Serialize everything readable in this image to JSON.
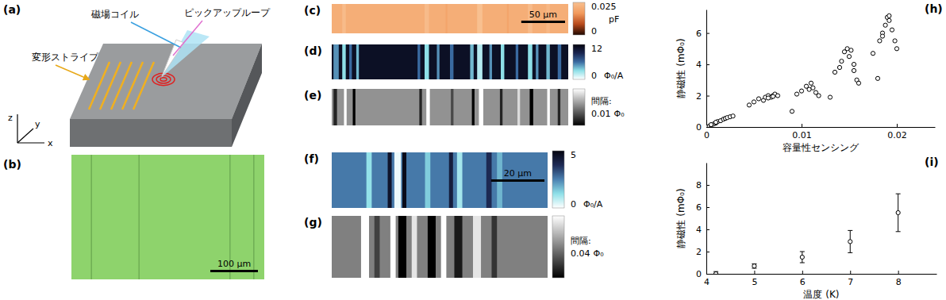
{
  "panels": {
    "a": {
      "label": "(a)",
      "coil": "磁場コイル",
      "loop": "ピックアップループ",
      "stripes": "変形ストライプ",
      "axes": [
        "x",
        "y",
        "z"
      ]
    },
    "b": {
      "label": "(b)",
      "color": "#8ed36c",
      "extent_um": 405,
      "lines_um": [
        42,
        142,
        333,
        383
      ],
      "scale_bar": {
        "length": 100,
        "label": "100 μm"
      }
    },
    "c": {
      "label": "(c)",
      "extent_um": 270,
      "background": 0.021,
      "stripes": [
        {
          "x": 12,
          "w": 4,
          "value": 0.024
        },
        {
          "x": 106,
          "w": 5,
          "value": 0.024
        },
        {
          "x": 130,
          "w": 2,
          "value": 0.019
        },
        {
          "x": 166,
          "w": 6,
          "value": 0.025
        },
        {
          "x": 200,
          "w": 2,
          "value": 0.019
        },
        {
          "x": 224,
          "w": 5,
          "value": 0.024
        },
        {
          "x": 245,
          "w": 4,
          "value": 0.023
        }
      ],
      "colorbar": {
        "range": [
          0,
          0.025
        ],
        "ticks": [
          0,
          0.025
        ],
        "unit": "pF",
        "colors": [
          "#200800",
          "#b84a1c",
          "#f29a5c",
          "#f8c090"
        ]
      },
      "scale_bar": {
        "length": 50,
        "label": "50 μm"
      }
    },
    "d": {
      "label": "(d)",
      "extent_um": 270,
      "background": 11,
      "stripes": [
        {
          "x": 2,
          "w": 6,
          "value": 5
        },
        {
          "x": 12,
          "w": 4,
          "value": 3
        },
        {
          "x": 20,
          "w": 3,
          "value": 6
        },
        {
          "x": 28,
          "w": 3,
          "value": 4
        },
        {
          "x": 98,
          "w": 3,
          "value": 6
        },
        {
          "x": 106,
          "w": 5,
          "value": 3
        },
        {
          "x": 120,
          "w": 3,
          "value": 5
        },
        {
          "x": 135,
          "w": 4,
          "value": 6
        },
        {
          "x": 158,
          "w": 4,
          "value": 4
        },
        {
          "x": 166,
          "w": 6,
          "value": 2
        },
        {
          "x": 180,
          "w": 3,
          "value": 5
        },
        {
          "x": 193,
          "w": 4,
          "value": 3
        },
        {
          "x": 210,
          "w": 3,
          "value": 6
        },
        {
          "x": 224,
          "w": 5,
          "value": 3
        },
        {
          "x": 233,
          "w": 3,
          "value": 5
        },
        {
          "x": 245,
          "w": 4,
          "value": 4
        },
        {
          "x": 258,
          "w": 4,
          "value": 6
        }
      ],
      "colorbar": {
        "range": [
          0,
          12
        ],
        "ticks": [
          0,
          12
        ],
        "unit": "Φ₀/A",
        "colors": [
          "#ffffff",
          "#8ee0e8",
          "#3a6aa0",
          "#1a2550",
          "#05050f"
        ]
      }
    },
    "e": {
      "label": "(e)",
      "extent_um": 270,
      "background": 0.02,
      "stripes": [
        {
          "x": 2,
          "w": 4,
          "value": 0.005
        },
        {
          "x": 14,
          "w": 3,
          "value": 0.035
        },
        {
          "x": 24,
          "w": 3,
          "value": 0
        },
        {
          "x": 100,
          "w": 3,
          "value": 0.005
        },
        {
          "x": 108,
          "w": 4,
          "value": 0.035
        },
        {
          "x": 136,
          "w": 3,
          "value": 0.01
        },
        {
          "x": 160,
          "w": 3,
          "value": 0
        },
        {
          "x": 168,
          "w": 5,
          "value": 0.035
        },
        {
          "x": 192,
          "w": 3,
          "value": 0.005
        },
        {
          "x": 212,
          "w": 3,
          "value": 0.03
        },
        {
          "x": 226,
          "w": 4,
          "value": 0
        },
        {
          "x": 246,
          "w": 3,
          "value": 0.035
        },
        {
          "x": 258,
          "w": 3,
          "value": 0.005
        }
      ],
      "colors": [
        "#000000",
        "#ffffff"
      ],
      "contour": {
        "title": "間隔:",
        "interval": 0.01,
        "unit": "Φ₀"
      }
    },
    "f": {
      "label": "(f)",
      "extent_um": 81,
      "background": 2.6,
      "stripes": [
        {
          "x": 13,
          "w": 2,
          "value": 1.2
        },
        {
          "x": 21,
          "w": 1.5,
          "value": 4.5
        },
        {
          "x": 23.5,
          "w": 2.5,
          "value": 0.2
        },
        {
          "x": 26.5,
          "w": 1.5,
          "value": 4.8
        },
        {
          "x": 35,
          "w": 2,
          "value": 1.5
        },
        {
          "x": 44,
          "w": 1.5,
          "value": 4.2
        },
        {
          "x": 47,
          "w": 2,
          "value": 1.0
        },
        {
          "x": 58,
          "w": 2,
          "value": 3.8
        },
        {
          "x": 62,
          "w": 2,
          "value": 1.8
        }
      ],
      "colorbar": {
        "range": [
          0,
          5
        ],
        "ticks": [
          0,
          5
        ],
        "unit": "Φ₀/A",
        "colors": [
          "#ffffff",
          "#8ee0e8",
          "#4a80b0",
          "#1e2a55",
          "#05050f"
        ]
      },
      "scale_bar": {
        "length": 20,
        "label": "20 μm"
      }
    },
    "g": {
      "label": "(g)",
      "extent_um": 81,
      "background": 0.1,
      "stripes": [
        {
          "x": 11,
          "w": 3,
          "value": 0.2
        },
        {
          "x": 16,
          "w": 2,
          "value": 0.05
        },
        {
          "x": 22,
          "w": 2,
          "value": 0.2
        },
        {
          "x": 25,
          "w": 3,
          "value": 0
        },
        {
          "x": 30,
          "w": 2,
          "value": 0.18
        },
        {
          "x": 36,
          "w": 3,
          "value": 0
        },
        {
          "x": 41,
          "w": 2,
          "value": 0.2
        },
        {
          "x": 46,
          "w": 3,
          "value": 0.02
        },
        {
          "x": 53,
          "w": 3,
          "value": 0.18
        },
        {
          "x": 60,
          "w": 2,
          "value": 0.04
        }
      ],
      "colors": [
        "#000000",
        "#ffffff"
      ],
      "contour": {
        "title": "間隔:",
        "interval": 0.04,
        "unit": "Φ₀"
      }
    }
  },
  "chart_data": [
    {
      "type": "scatter",
      "title": "(h)",
      "xlabel": "容量性センシング",
      "ylabel": "静磁性 (mΦ₀)",
      "marker": "circle",
      "x": [
        0,
        0.0003,
        0.0005,
        0.0008,
        0.001,
        0.0012,
        0.0015,
        0.0018,
        0.002,
        0.0022,
        0.0025,
        0.0028,
        0.0005,
        0.001,
        0.0045,
        0.005,
        0.0055,
        0.006,
        0.0062,
        0.0065,
        0.0068,
        0.007,
        0.0072,
        0.0075,
        0.0065,
        0.007,
        0.009,
        0.0095,
        0.01,
        0.0105,
        0.011,
        0.0108,
        0.0112,
        0.0115,
        0.0118,
        0.013,
        0.0135,
        0.014,
        0.0142,
        0.0145,
        0.0148,
        0.015,
        0.0152,
        0.0155,
        0.0158,
        0.016,
        0.0155,
        0.0175,
        0.018,
        0.0182,
        0.0185,
        0.0188,
        0.019,
        0.0192,
        0.0195,
        0.0198,
        0.02,
        0.0185,
        0.0192
      ],
      "values": [
        0,
        0.05,
        0.1,
        0.2,
        0.25,
        0.35,
        0.4,
        0.5,
        0.55,
        0.6,
        0.65,
        0.7,
        0.15,
        0.3,
        1.4,
        1.6,
        1.8,
        1.7,
        1.9,
        2.0,
        1.9,
        2.0,
        2.1,
        2.0,
        1.85,
        1.95,
        1.0,
        2.1,
        2.3,
        2.6,
        2.8,
        2.4,
        2.5,
        2.2,
        2.0,
        1.9,
        3.5,
        3.8,
        4.2,
        4.8,
        5.0,
        4.5,
        4.9,
        3.6,
        3.0,
        2.8,
        4.0,
        4.7,
        3.1,
        5.5,
        6.0,
        6.5,
        7.0,
        6.8,
        6.2,
        5.5,
        5.0,
        5.8,
        7.1
      ],
      "xlim": [
        0,
        0.024
      ],
      "ylim": [
        0,
        7.5
      ],
      "xticks": [
        0,
        0.01,
        0.02
      ],
      "yticks": [
        0,
        2,
        4,
        6
      ]
    },
    {
      "type": "scatter",
      "title": "(i)",
      "xlabel": "温度 (K)",
      "ylabel": "静磁性 (mΦ₀)",
      "marker": "circle",
      "x": [
        4.2,
        5,
        6,
        7,
        8
      ],
      "values": [
        0,
        0.7,
        1.5,
        2.9,
        5.5
      ],
      "errors": [
        0.2,
        0.2,
        0.5,
        1.0,
        1.7
      ],
      "xlim": [
        4,
        8.8
      ],
      "ylim": [
        0,
        10
      ],
      "xticks": [
        4,
        5,
        6,
        7,
        8
      ],
      "yticks": [
        0,
        2,
        4,
        6,
        8
      ]
    }
  ]
}
